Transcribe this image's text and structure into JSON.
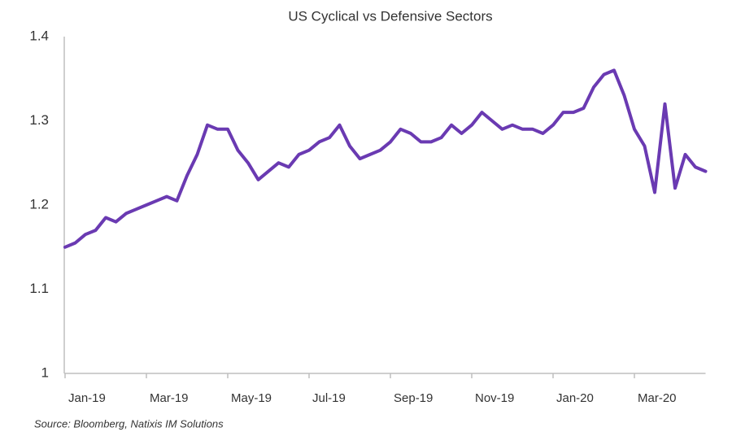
{
  "chart_data": {
    "type": "line",
    "title": "US Cyclical vs Defensive Sectors",
    "source": "Source: Bloomberg, Natixis IM Solutions",
    "categories": [
      "Jan-19",
      null,
      null,
      null,
      null,
      null,
      null,
      null,
      "Mar-19",
      null,
      null,
      null,
      null,
      null,
      null,
      null,
      "May-19",
      null,
      null,
      null,
      null,
      null,
      null,
      null,
      "Jul-19",
      null,
      null,
      null,
      null,
      null,
      null,
      null,
      "Sep-19",
      null,
      null,
      null,
      null,
      null,
      null,
      null,
      "Nov-19",
      null,
      null,
      null,
      null,
      null,
      null,
      null,
      "Jan-20",
      null,
      null,
      null,
      null,
      null,
      null,
      null,
      "Mar-20",
      null,
      null,
      null,
      null,
      null,
      null,
      null
    ],
    "values": [
      1.15,
      1.155,
      1.165,
      1.17,
      1.185,
      1.18,
      1.19,
      1.195,
      1.2,
      1.205,
      1.21,
      1.205,
      1.235,
      1.26,
      1.295,
      1.29,
      1.29,
      1.265,
      1.25,
      1.23,
      1.24,
      1.25,
      1.245,
      1.26,
      1.265,
      1.275,
      1.28,
      1.295,
      1.27,
      1.255,
      1.26,
      1.265,
      1.275,
      1.29,
      1.285,
      1.275,
      1.275,
      1.28,
      1.295,
      1.285,
      1.295,
      1.31,
      1.3,
      1.29,
      1.295,
      1.29,
      1.29,
      1.285,
      1.295,
      1.31,
      1.31,
      1.315,
      1.34,
      1.355,
      1.36,
      1.33,
      1.29,
      1.27,
      1.215,
      1.32,
      1.22,
      1.26,
      1.245,
      1.24
    ],
    "color": "#6a3ab2",
    "ylim": [
      1,
      1.4
    ],
    "yticks": [
      1,
      1.1,
      1.2,
      1.3,
      1.4
    ],
    "grid": false
  }
}
